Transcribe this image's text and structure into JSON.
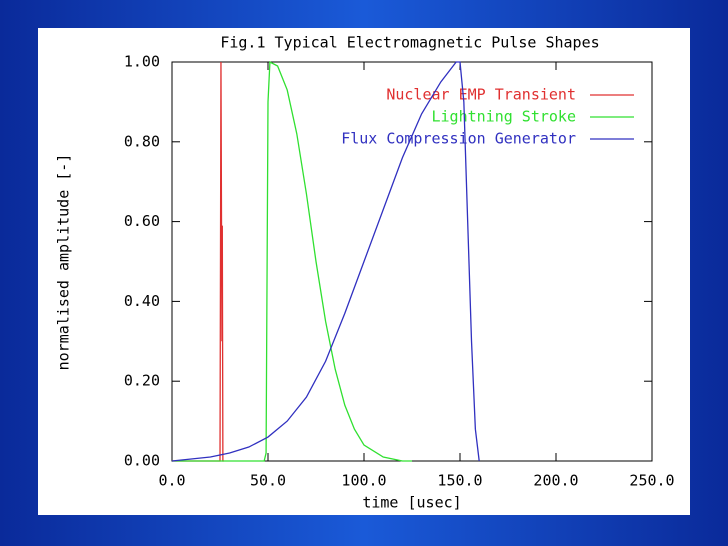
{
  "chart_data": {
    "type": "line",
    "title": "Fig.1 Typical Electromagnetic Pulse Shapes",
    "xlabel": "time [usec]",
    "ylabel": "normalised amplitude [-]",
    "xlim": [
      0,
      250
    ],
    "ylim": [
      0,
      1
    ],
    "xticks": [
      {
        "value": 0,
        "label": "0.0"
      },
      {
        "value": 50,
        "label": "50.0"
      },
      {
        "value": 100,
        "label": "100.0"
      },
      {
        "value": 150,
        "label": "150.0"
      },
      {
        "value": 200,
        "label": "200.0"
      },
      {
        "value": 250,
        "label": "250.0"
      }
    ],
    "yticks": [
      {
        "value": 0,
        "label": "0.00"
      },
      {
        "value": 0.2,
        "label": "0.20"
      },
      {
        "value": 0.4,
        "label": "0.40"
      },
      {
        "value": 0.6,
        "label": "0.60"
      },
      {
        "value": 0.8,
        "label": "0.80"
      },
      {
        "value": 1,
        "label": "1.00"
      }
    ],
    "legend": "upper right",
    "series": [
      {
        "name": "Nuclear EMP Transient",
        "color": "#e03030",
        "x": [
          0,
          25,
          25.5,
          26,
          26.2,
          26.5,
          27
        ],
        "values": [
          0,
          0,
          1,
          0.3,
          0.59,
          0,
          0
        ]
      },
      {
        "name": "Lightning Stroke",
        "color": "#30e030",
        "x": [
          0,
          48,
          49,
          50,
          51,
          55,
          60,
          65,
          70,
          75,
          80,
          85,
          90,
          95,
          100,
          110,
          120,
          125
        ],
        "values": [
          0,
          0,
          0.02,
          0.9,
          1,
          0.99,
          0.93,
          0.82,
          0.67,
          0.5,
          0.35,
          0.23,
          0.14,
          0.08,
          0.04,
          0.01,
          0,
          0
        ]
      },
      {
        "name": "Flux Compression Generator",
        "color": "#3030c0",
        "x": [
          0,
          10,
          20,
          30,
          40,
          50,
          60,
          70,
          80,
          90,
          100,
          110,
          120,
          130,
          140,
          148,
          150,
          152,
          154,
          156,
          158,
          160
        ],
        "values": [
          0,
          0.005,
          0.01,
          0.02,
          0.035,
          0.06,
          0.1,
          0.16,
          0.25,
          0.37,
          0.5,
          0.63,
          0.76,
          0.87,
          0.95,
          1,
          1,
          0.9,
          0.6,
          0.3,
          0.08,
          0
        ]
      }
    ]
  }
}
